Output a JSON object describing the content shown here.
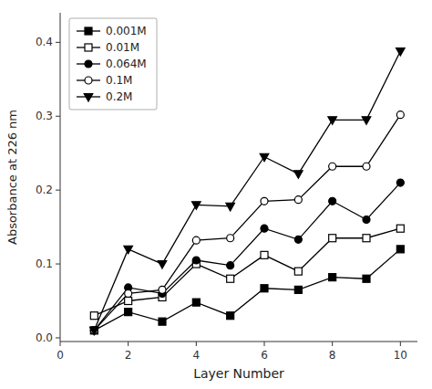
{
  "chart_data": {
    "type": "line",
    "xlabel": "Layer Number",
    "ylabel": "Absorbance at 226 nm",
    "x": [
      1,
      2,
      3,
      4,
      5,
      6,
      7,
      8,
      9,
      10
    ],
    "xlim": [
      0,
      10.5
    ],
    "ylim": [
      -0.005,
      0.44
    ],
    "xticks": [
      0,
      2,
      4,
      6,
      8,
      10
    ],
    "yticks": [
      {
        "value": 0.0,
        "label": "0.0"
      },
      0.1,
      0.2,
      0.3,
      0.4
    ],
    "grid": false,
    "legend": "upper-left",
    "series": [
      {
        "name": "0.001M",
        "color": "black",
        "marker": "square",
        "values": [
          0.01,
          0.035,
          0.022,
          0.048,
          0.03,
          0.067,
          0.065,
          0.082,
          0.08,
          0.12
        ]
      },
      {
        "name": "0.01M",
        "color": "black",
        "marker": "open-square",
        "values": [
          0.03,
          0.05,
          0.055,
          0.1,
          0.08,
          0.112,
          0.09,
          0.135,
          0.135,
          0.148
        ]
      },
      {
        "name": "0.064M",
        "color": "black",
        "marker": "circle",
        "values": [
          0.01,
          0.068,
          0.06,
          0.105,
          0.098,
          0.148,
          0.133,
          0.185,
          0.16,
          0.21
        ]
      },
      {
        "name": "0.1M",
        "color": "black",
        "marker": "open-circle",
        "values": [
          0.01,
          0.06,
          0.065,
          0.132,
          0.135,
          0.185,
          0.187,
          0.232,
          0.232,
          0.302
        ]
      },
      {
        "name": "0.2M",
        "color": "black",
        "marker": "triangle-down",
        "values": [
          0.01,
          0.12,
          0.1,
          0.18,
          0.178,
          0.245,
          0.222,
          0.295,
          0.295,
          0.388
        ]
      }
    ]
  }
}
